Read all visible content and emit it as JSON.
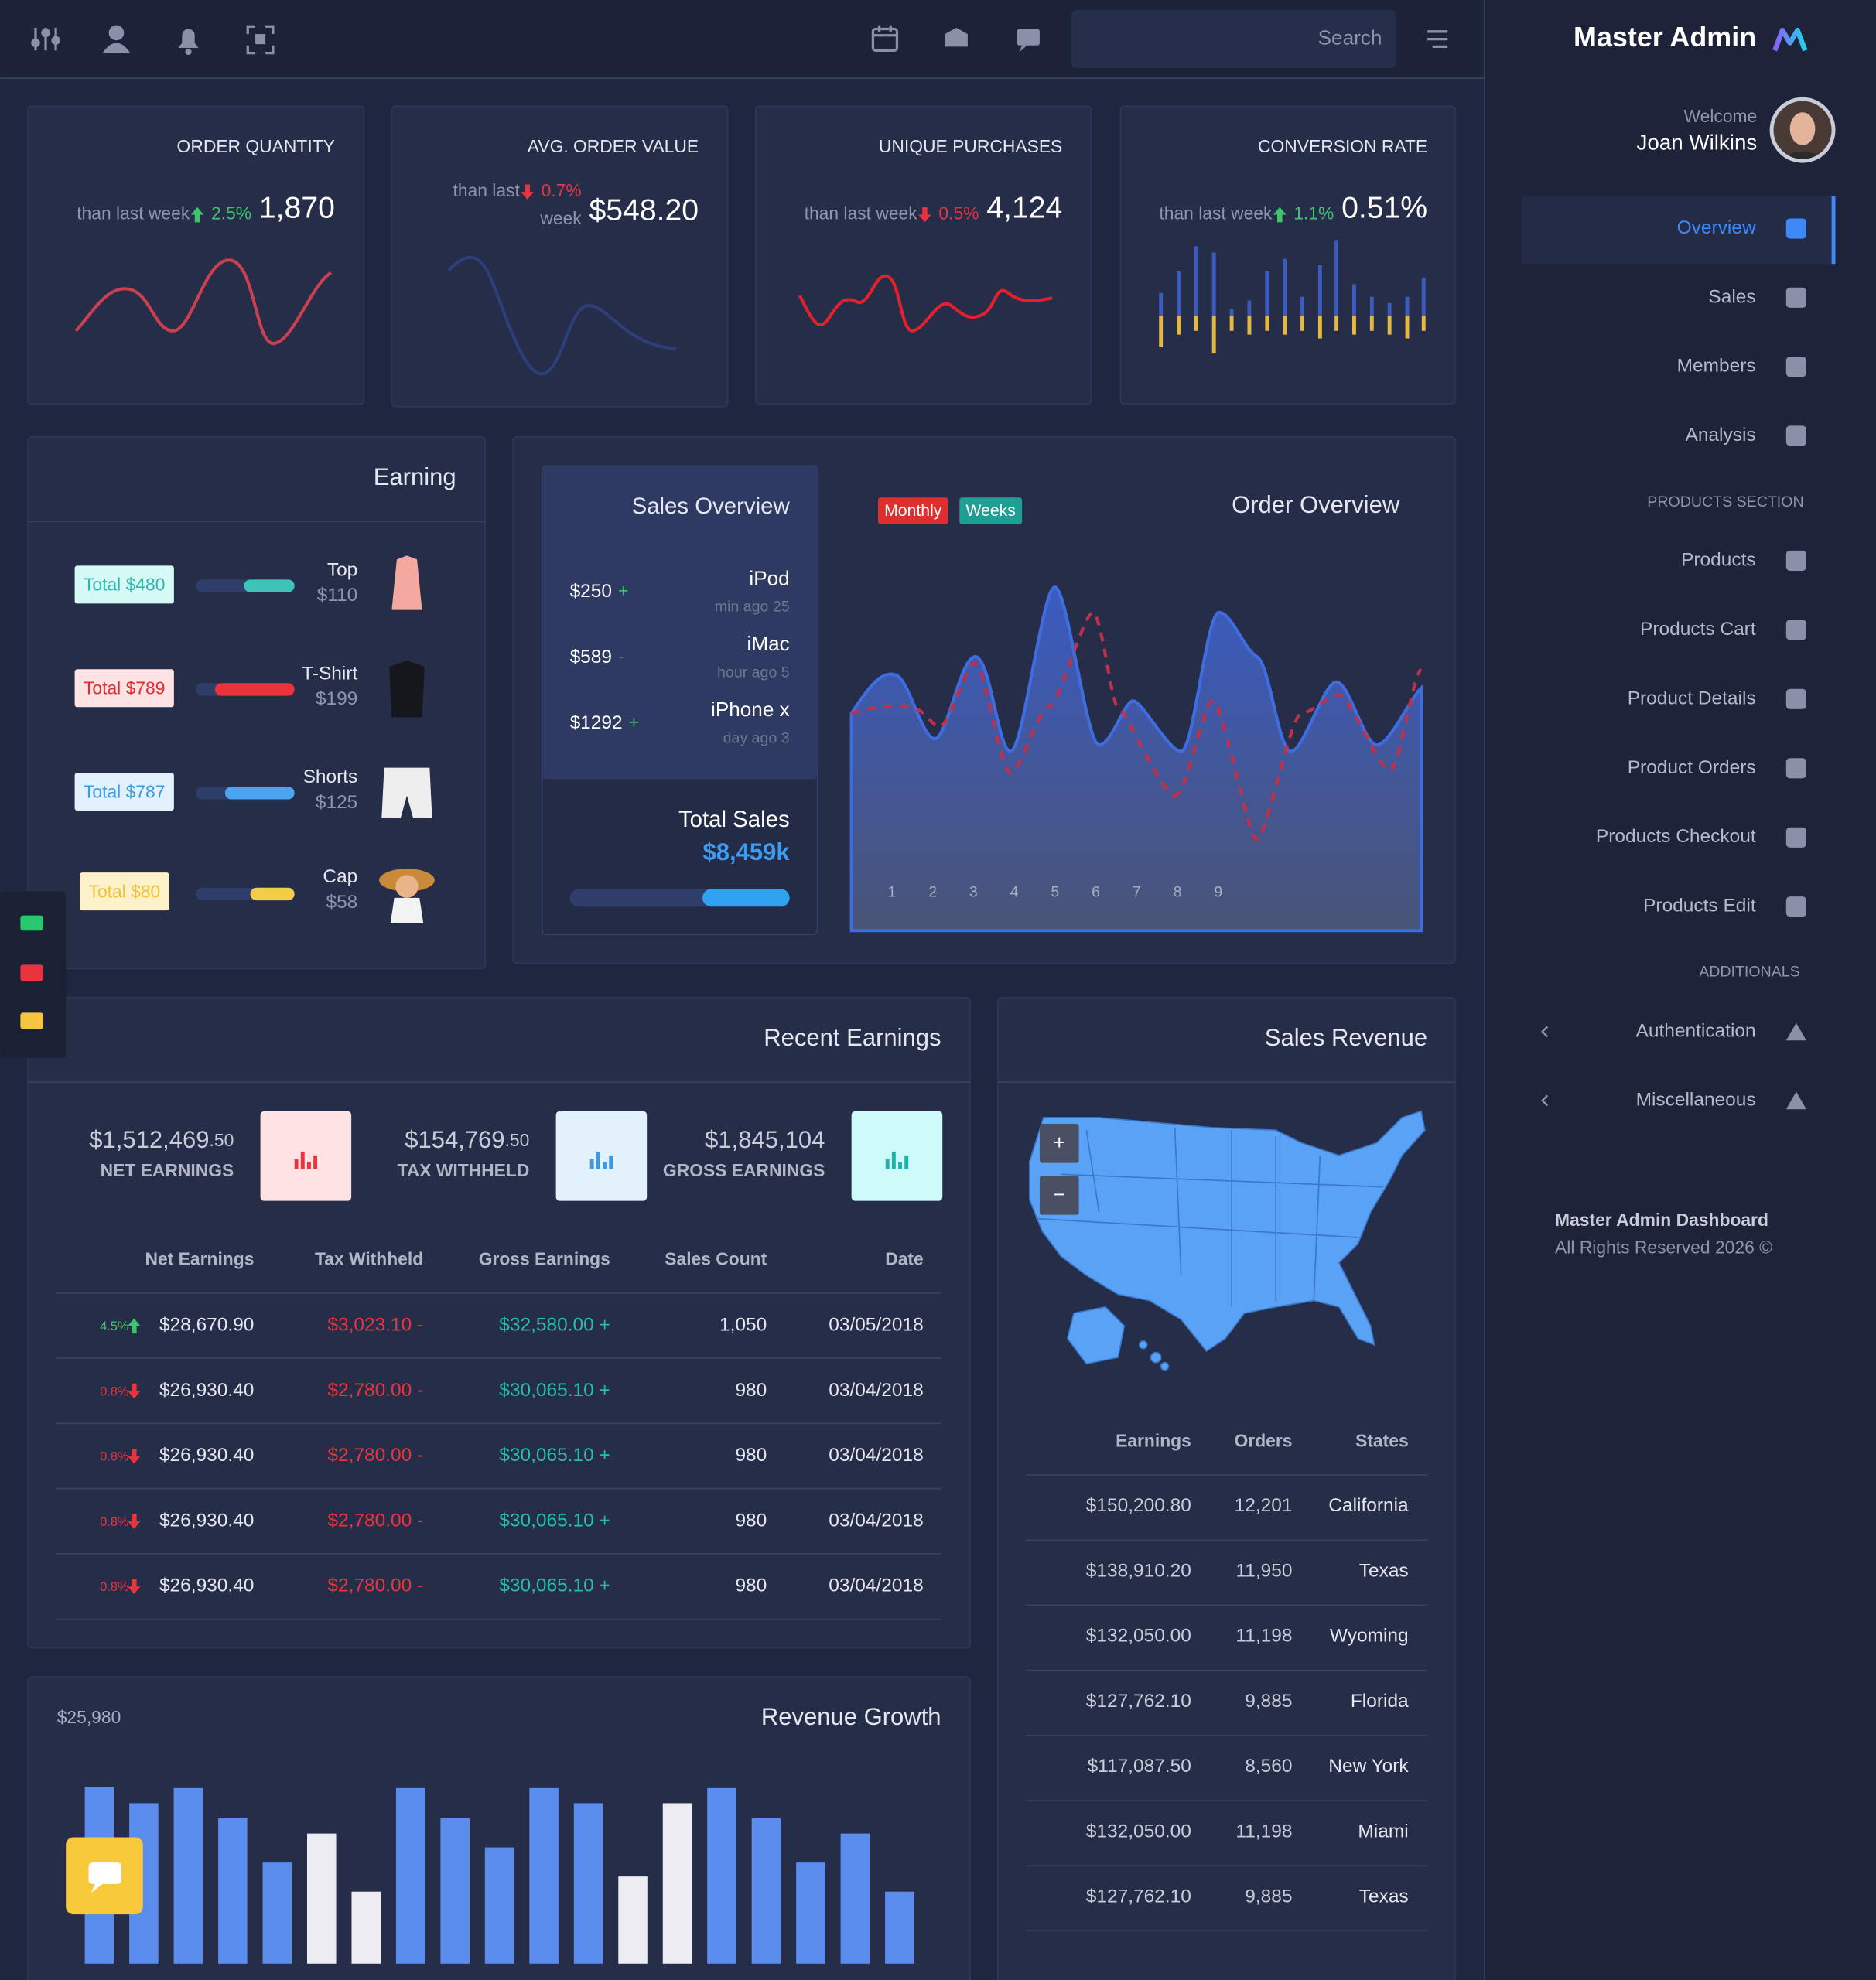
{
  "header": {
    "search_placeholder": "Search"
  },
  "sidebar": {
    "brand": "Master Admin",
    "welcome": "Welcome",
    "user": "Joan Wilkins",
    "nav": [
      "Overview",
      "Sales",
      "Members",
      "Analysis"
    ],
    "products_title": "PRODUCTS SECTION",
    "products": [
      "Products",
      "Products Cart",
      "Product Details",
      "Product Orders",
      "Products Checkout",
      "Products Edit"
    ],
    "additionals_title": "ADDITIONALS",
    "additionals": [
      "Authentication",
      "Miscellaneous"
    ],
    "footer_title": "Master Admin Dashboard",
    "footer_text": "All Rights Reserved 2026 ©"
  },
  "stats": [
    {
      "title": "ORDER QUANTITY",
      "compare": "than last week",
      "change": "2.5%",
      "trend": "up",
      "value": "1,870"
    },
    {
      "title": "AVG. ORDER VALUE",
      "compare": "than last",
      "compare_line2": "week",
      "change": "0.7%",
      "trend": "down",
      "value": "$548.20"
    },
    {
      "title": "UNIQUE PURCHASES",
      "compare": "than last week",
      "change": "0.5%",
      "trend": "down",
      "value": "4,124"
    },
    {
      "title": "CONVERSION RATE",
      "compare": "than last week",
      "change": "1.1%",
      "trend": "up",
      "value": "0.51%"
    }
  ],
  "earning": {
    "title": "Earning",
    "items": [
      {
        "total": "Total $480",
        "name": "Top",
        "price": "$110",
        "color": "#2fb8ad",
        "bg": "#d7f9f6"
      },
      {
        "total": "Total $789",
        "name": "T-Shirt",
        "price": "$199",
        "color": "#e02d2d",
        "bg": "#fde3e3"
      },
      {
        "total": "Total $787",
        "name": "Shorts",
        "price": "$125",
        "color": "#3b9ae1",
        "bg": "#e3f1fd"
      },
      {
        "total": "Total $80",
        "name": "Cap",
        "price": "$58",
        "color": "#f2c23e",
        "bg": "#fdf1c9"
      }
    ]
  },
  "sales_overview": {
    "title": "Sales Overview",
    "items": [
      {
        "amount": "$250",
        "sign": "+",
        "product": "iPod",
        "time": "min ago 25"
      },
      {
        "amount": "$589",
        "sign": "-",
        "product": "iMac",
        "time": "hour ago 5"
      },
      {
        "amount": "$1292",
        "sign": "+",
        "product": "iPhone x",
        "time": "day ago 3"
      }
    ],
    "total_label": "Total Sales",
    "total_value": "$8,459k"
  },
  "order_overview": {
    "title": "Order Overview",
    "filters": [
      "Monthly",
      "Weeks"
    ],
    "x_labels": [
      "1",
      "2",
      "3",
      "4",
      "5",
      "6",
      "7",
      "8",
      "9"
    ]
  },
  "recent_earnings": {
    "title": "Recent Earnings",
    "summary": [
      {
        "value": "$1,512,469",
        "decimals": ".50",
        "label": "NET EARNINGS",
        "color": "#e8343d",
        "bg": "#fde3e3"
      },
      {
        "value": "$154,769",
        "decimals": ".50",
        "label": "TAX WITHHELD",
        "color": "#3b9ae1",
        "bg": "#e3f1fd"
      },
      {
        "value": "$1,845,104",
        "label": "GROSS EARNINGS",
        "color": "#1fb3a8",
        "bg": "#ccfbfa"
      }
    ],
    "columns": [
      "Net Earnings",
      "Tax Withheld",
      "Gross Earnings",
      "Sales Count",
      "Date"
    ],
    "rows": [
      {
        "change": "4.5%",
        "trend": "up",
        "net": "$28,670.90",
        "tax": "$3,023.10 -",
        "gross": "$32,580.00 +",
        "count": "1,050",
        "date": "03/05/2018"
      },
      {
        "change": "0.8%",
        "trend": "down",
        "net": "$26,930.40",
        "tax": "$2,780.00 -",
        "gross": "$30,065.10 +",
        "count": "980",
        "date": "03/04/2018"
      },
      {
        "change": "0.8%",
        "trend": "down",
        "net": "$26,930.40",
        "tax": "$2,780.00 -",
        "gross": "$30,065.10 +",
        "count": "980",
        "date": "03/04/2018"
      },
      {
        "change": "0.8%",
        "trend": "down",
        "net": "$26,930.40",
        "tax": "$2,780.00 -",
        "gross": "$30,065.10 +",
        "count": "980",
        "date": "03/04/2018"
      },
      {
        "change": "0.8%",
        "trend": "down",
        "net": "$26,930.40",
        "tax": "$2,780.00 -",
        "gross": "$30,065.10 +",
        "count": "980",
        "date": "03/04/2018"
      }
    ]
  },
  "sales_revenue": {
    "title": "Sales Revenue",
    "zoom_in": "+",
    "zoom_out": "−",
    "columns": [
      "Earnings",
      "Orders",
      "States"
    ],
    "rows": [
      [
        "$150,200.80",
        "12,201",
        "California"
      ],
      [
        "$138,910.20",
        "11,950",
        "Texas"
      ],
      [
        "$132,050.00",
        "11,198",
        "Wyoming"
      ],
      [
        "$127,762.10",
        "9,885",
        "Florida"
      ],
      [
        "$117,087.50",
        "8,560",
        "New York"
      ],
      [
        "$132,050.00",
        "11,198",
        "Miami"
      ],
      [
        "$127,762.10",
        "9,885",
        "Texas"
      ]
    ]
  },
  "chart_data": {
    "type": "bar",
    "title": "Revenue Growth",
    "annotation": "$25,980",
    "ylim": [
      0,
      150
    ],
    "values": [
      140,
      127,
      139,
      115,
      80,
      103,
      57,
      139,
      115,
      92,
      139,
      127,
      69,
      127,
      139,
      115,
      80,
      103,
      57
    ],
    "colors": [
      "#5b8def",
      "#5b8def",
      "#5b8def",
      "#5b8def",
      "#5b8def",
      "#ececf2",
      "#ececf2",
      "#5b8def",
      "#5b8def",
      "#5b8def",
      "#5b8def",
      "#5b8def",
      "#ececf2",
      "#ececf2",
      "#5b8def",
      "#5b8def",
      "#5b8def",
      "#5b8def",
      "#5b8def"
    ]
  }
}
